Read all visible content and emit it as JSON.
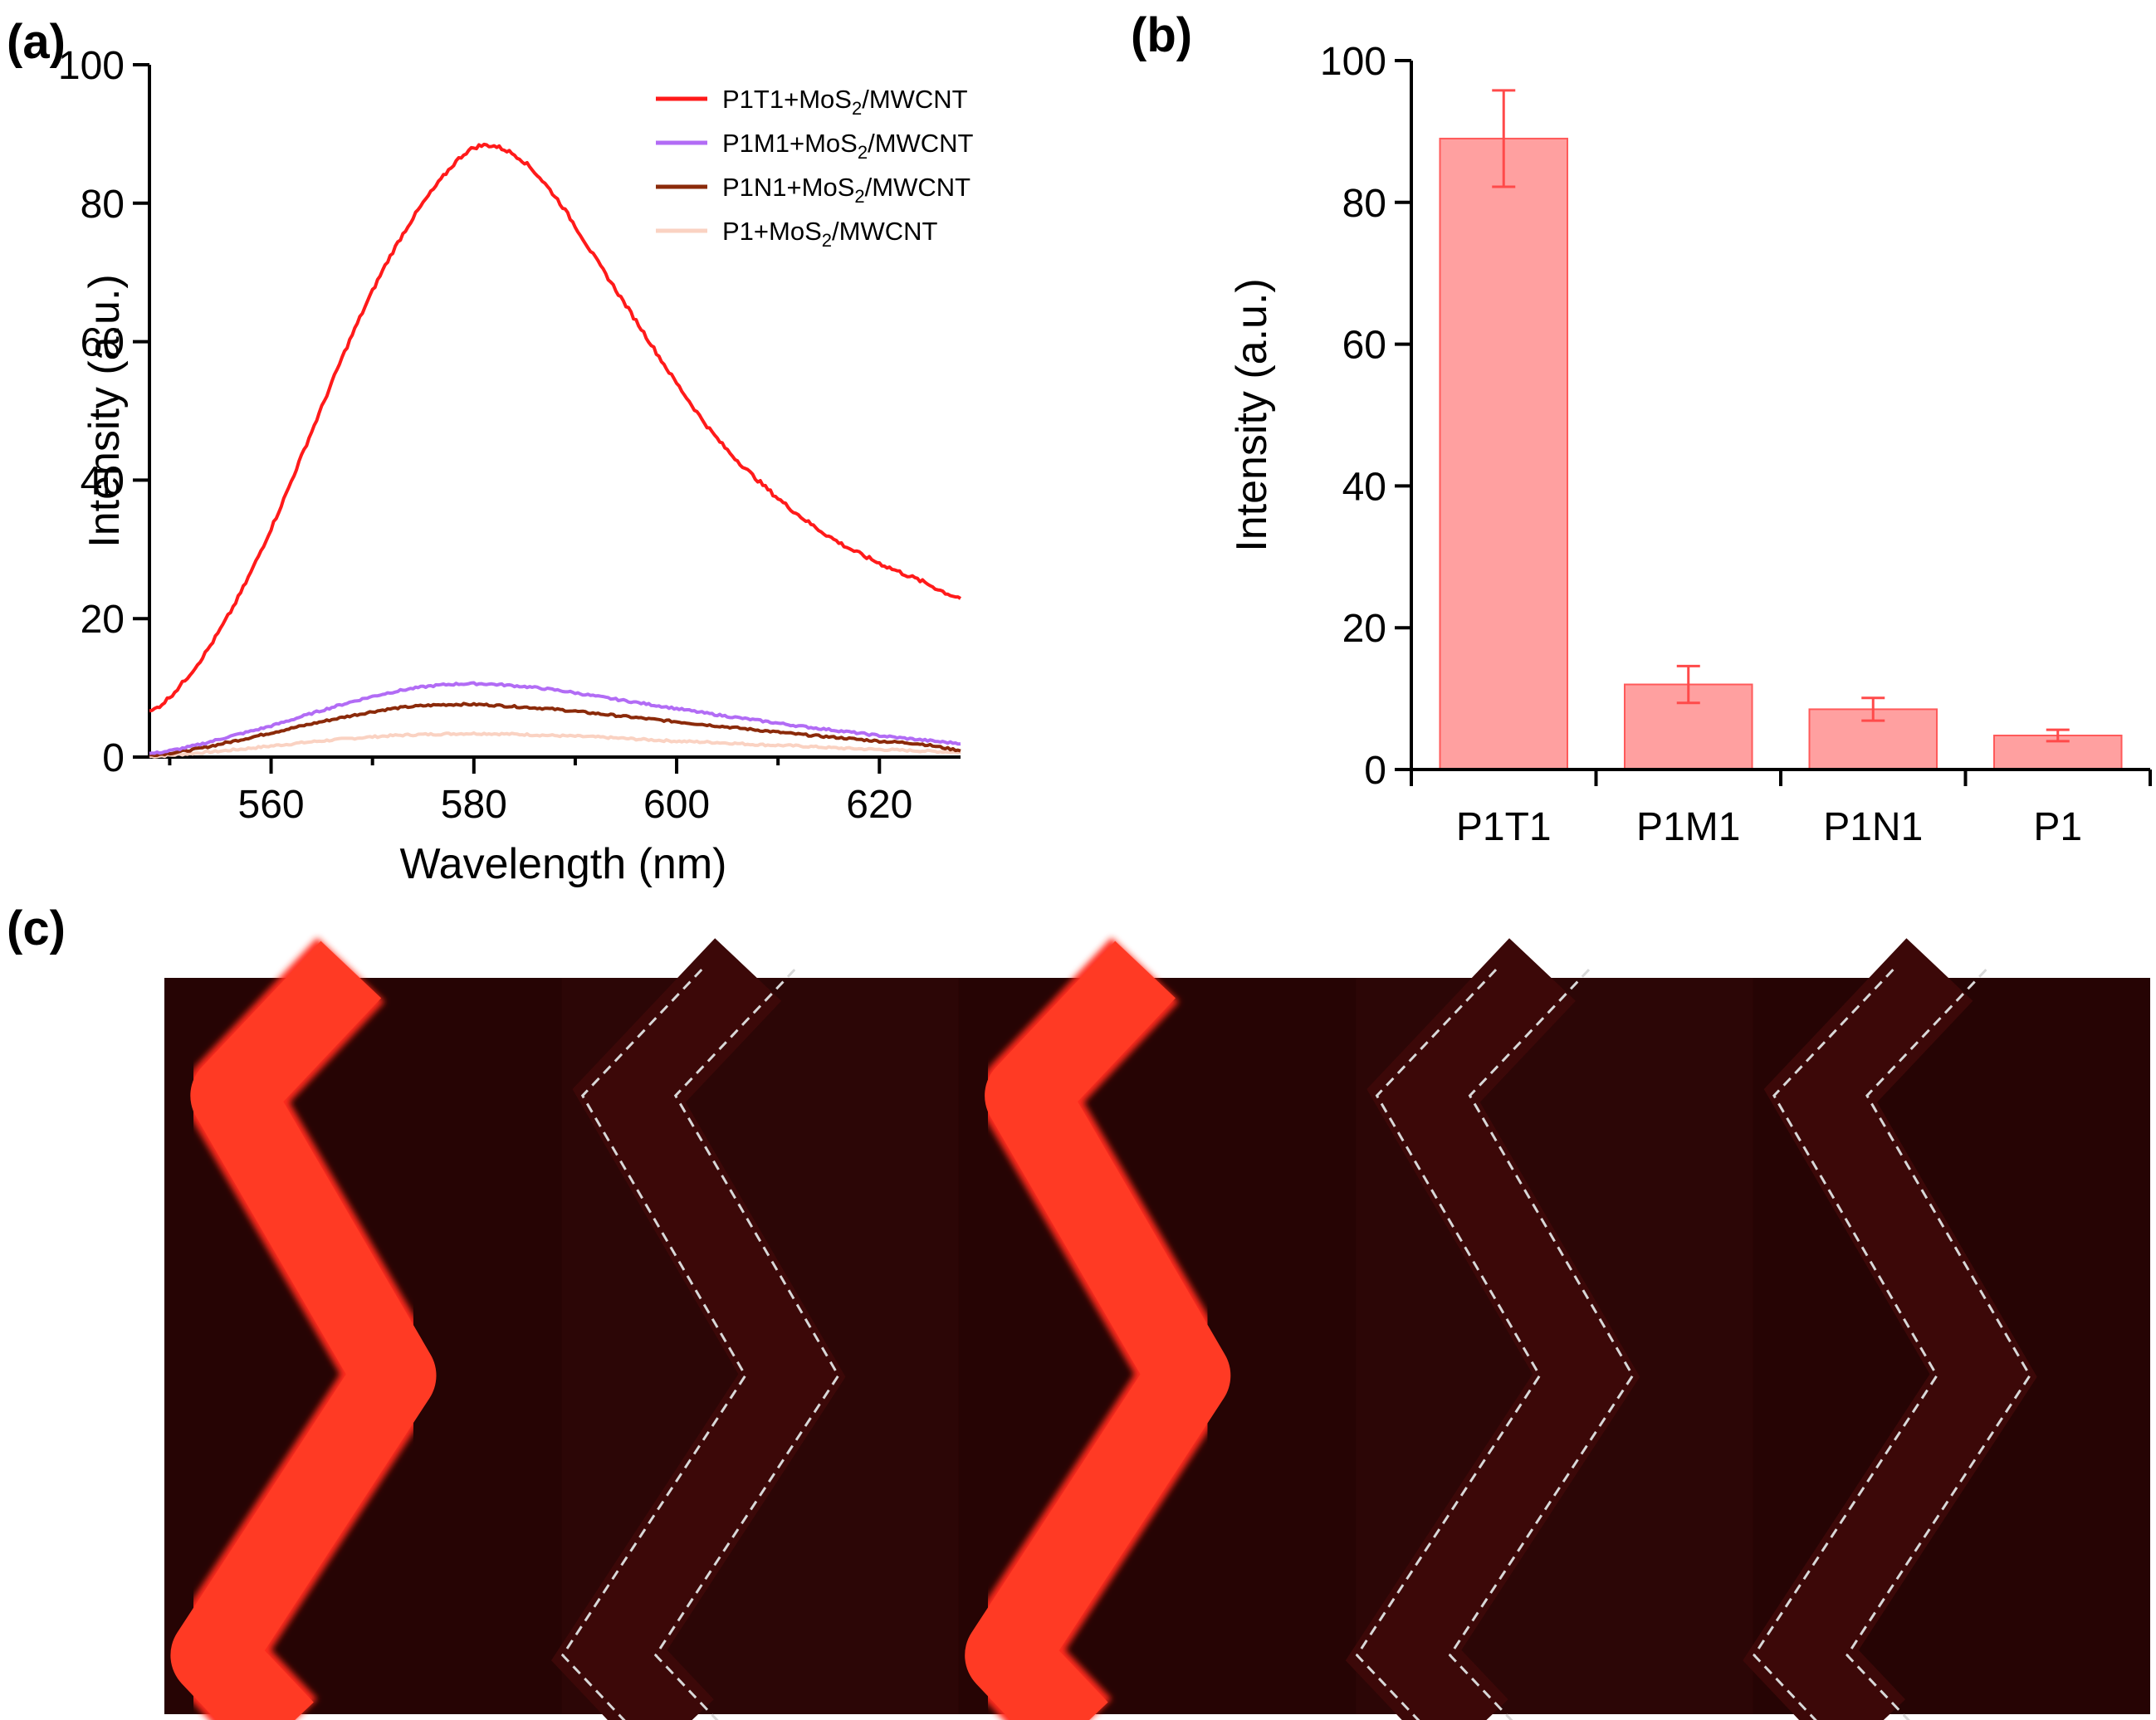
{
  "panels": {
    "a": "(a)",
    "b": "(b)",
    "c": "(c)"
  },
  "chart_data": [
    {
      "type": "line",
      "id": "a",
      "xlabel": "Wavelength (nm)",
      "ylabel": "Intensity (a.u.)",
      "xlim": [
        548,
        628
      ],
      "ylim": [
        0,
        100
      ],
      "xticks": [
        560,
        580,
        600,
        620
      ],
      "yticks": [
        0,
        20,
        40,
        60,
        80,
        100
      ],
      "series": [
        {
          "name": "P1T1+MoS2/MWCNT",
          "legend_prefix": "P1T1+MoS",
          "legend_sub": "2",
          "legend_suffix": "/MWCNT",
          "color": "#ff1a1a",
          "x": [
            548,
            552,
            556,
            560,
            564,
            568,
            572,
            576,
            580,
            584,
            588,
            592,
            596,
            600,
            604,
            608,
            612,
            616,
            620,
            624,
            628
          ],
          "values": [
            6.5,
            12,
            21,
            33,
            47,
            61,
            73,
            82,
            88,
            87,
            81,
            72,
            63,
            54,
            46,
            40,
            35,
            31,
            28,
            25.5,
            23
          ]
        },
        {
          "name": "P1M1+MoS2/MWCNT",
          "legend_prefix": "P1M1+MoS",
          "legend_sub": "2",
          "legend_suffix": "/MWCNT",
          "color": "#b26cf5",
          "x": [
            548,
            552,
            556,
            560,
            564,
            568,
            572,
            576,
            580,
            584,
            588,
            592,
            596,
            600,
            604,
            608,
            612,
            616,
            620,
            624,
            628
          ],
          "values": [
            0.5,
            1.5,
            3,
            4.5,
            6.3,
            8,
            9.4,
            10.3,
            10.6,
            10.3,
            9.7,
            8.8,
            7.9,
            7,
            6.1,
            5.3,
            4.5,
            3.8,
            3.1,
            2.5,
            2
          ]
        },
        {
          "name": "P1N1+MoS2/MWCNT",
          "legend_prefix": "P1N1+MoS",
          "legend_sub": "2",
          "legend_suffix": "/MWCNT",
          "color": "#8b2a0a",
          "x": [
            548,
            552,
            556,
            560,
            564,
            568,
            572,
            576,
            580,
            584,
            588,
            592,
            596,
            600,
            604,
            608,
            612,
            616,
            620,
            624,
            628
          ],
          "values": [
            0.3,
            1,
            2.2,
            3.5,
            4.8,
            6,
            7,
            7.5,
            7.6,
            7.3,
            6.9,
            6.3,
            5.7,
            5.1,
            4.5,
            3.9,
            3.3,
            2.8,
            2.3,
            1.9,
            1
          ]
        },
        {
          "name": "P1+MoS2/MWCNT",
          "legend_prefix": "P1+MoS",
          "legend_sub": "2",
          "legend_suffix": "/MWCNT",
          "color": "#fad2c2",
          "x": [
            548,
            552,
            556,
            560,
            564,
            568,
            572,
            576,
            580,
            584,
            588,
            592,
            596,
            600,
            604,
            608,
            612,
            616,
            620,
            624,
            628
          ],
          "values": [
            0.1,
            0.5,
            1,
            1.6,
            2.2,
            2.7,
            3.1,
            3.3,
            3.4,
            3.3,
            3.1,
            2.9,
            2.6,
            2.3,
            2.1,
            1.8,
            1.6,
            1.3,
            1.1,
            0.9,
            0.7
          ]
        }
      ]
    },
    {
      "type": "bar",
      "id": "b",
      "xlabel": "",
      "ylabel": "Intensity (a.u.)",
      "ylim": [
        0,
        100
      ],
      "yticks": [
        0,
        20,
        40,
        60,
        80,
        100
      ],
      "categories": [
        "P1T1",
        "P1M1",
        "P1N1",
        "P1"
      ],
      "values": [
        89,
        12,
        8.5,
        4.8
      ],
      "errors": [
        6.8,
        2.6,
        1.6,
        0.8
      ],
      "bar_color": "#ffa0a0",
      "edge_color": "#ff5a5a"
    }
  ],
  "micrographs": {
    "count": 5,
    "bright": [
      true,
      false,
      true,
      false,
      false
    ],
    "outline_color": "#d8d8d8",
    "channel_color": "#ff2a1a",
    "background": "#2a0505"
  }
}
